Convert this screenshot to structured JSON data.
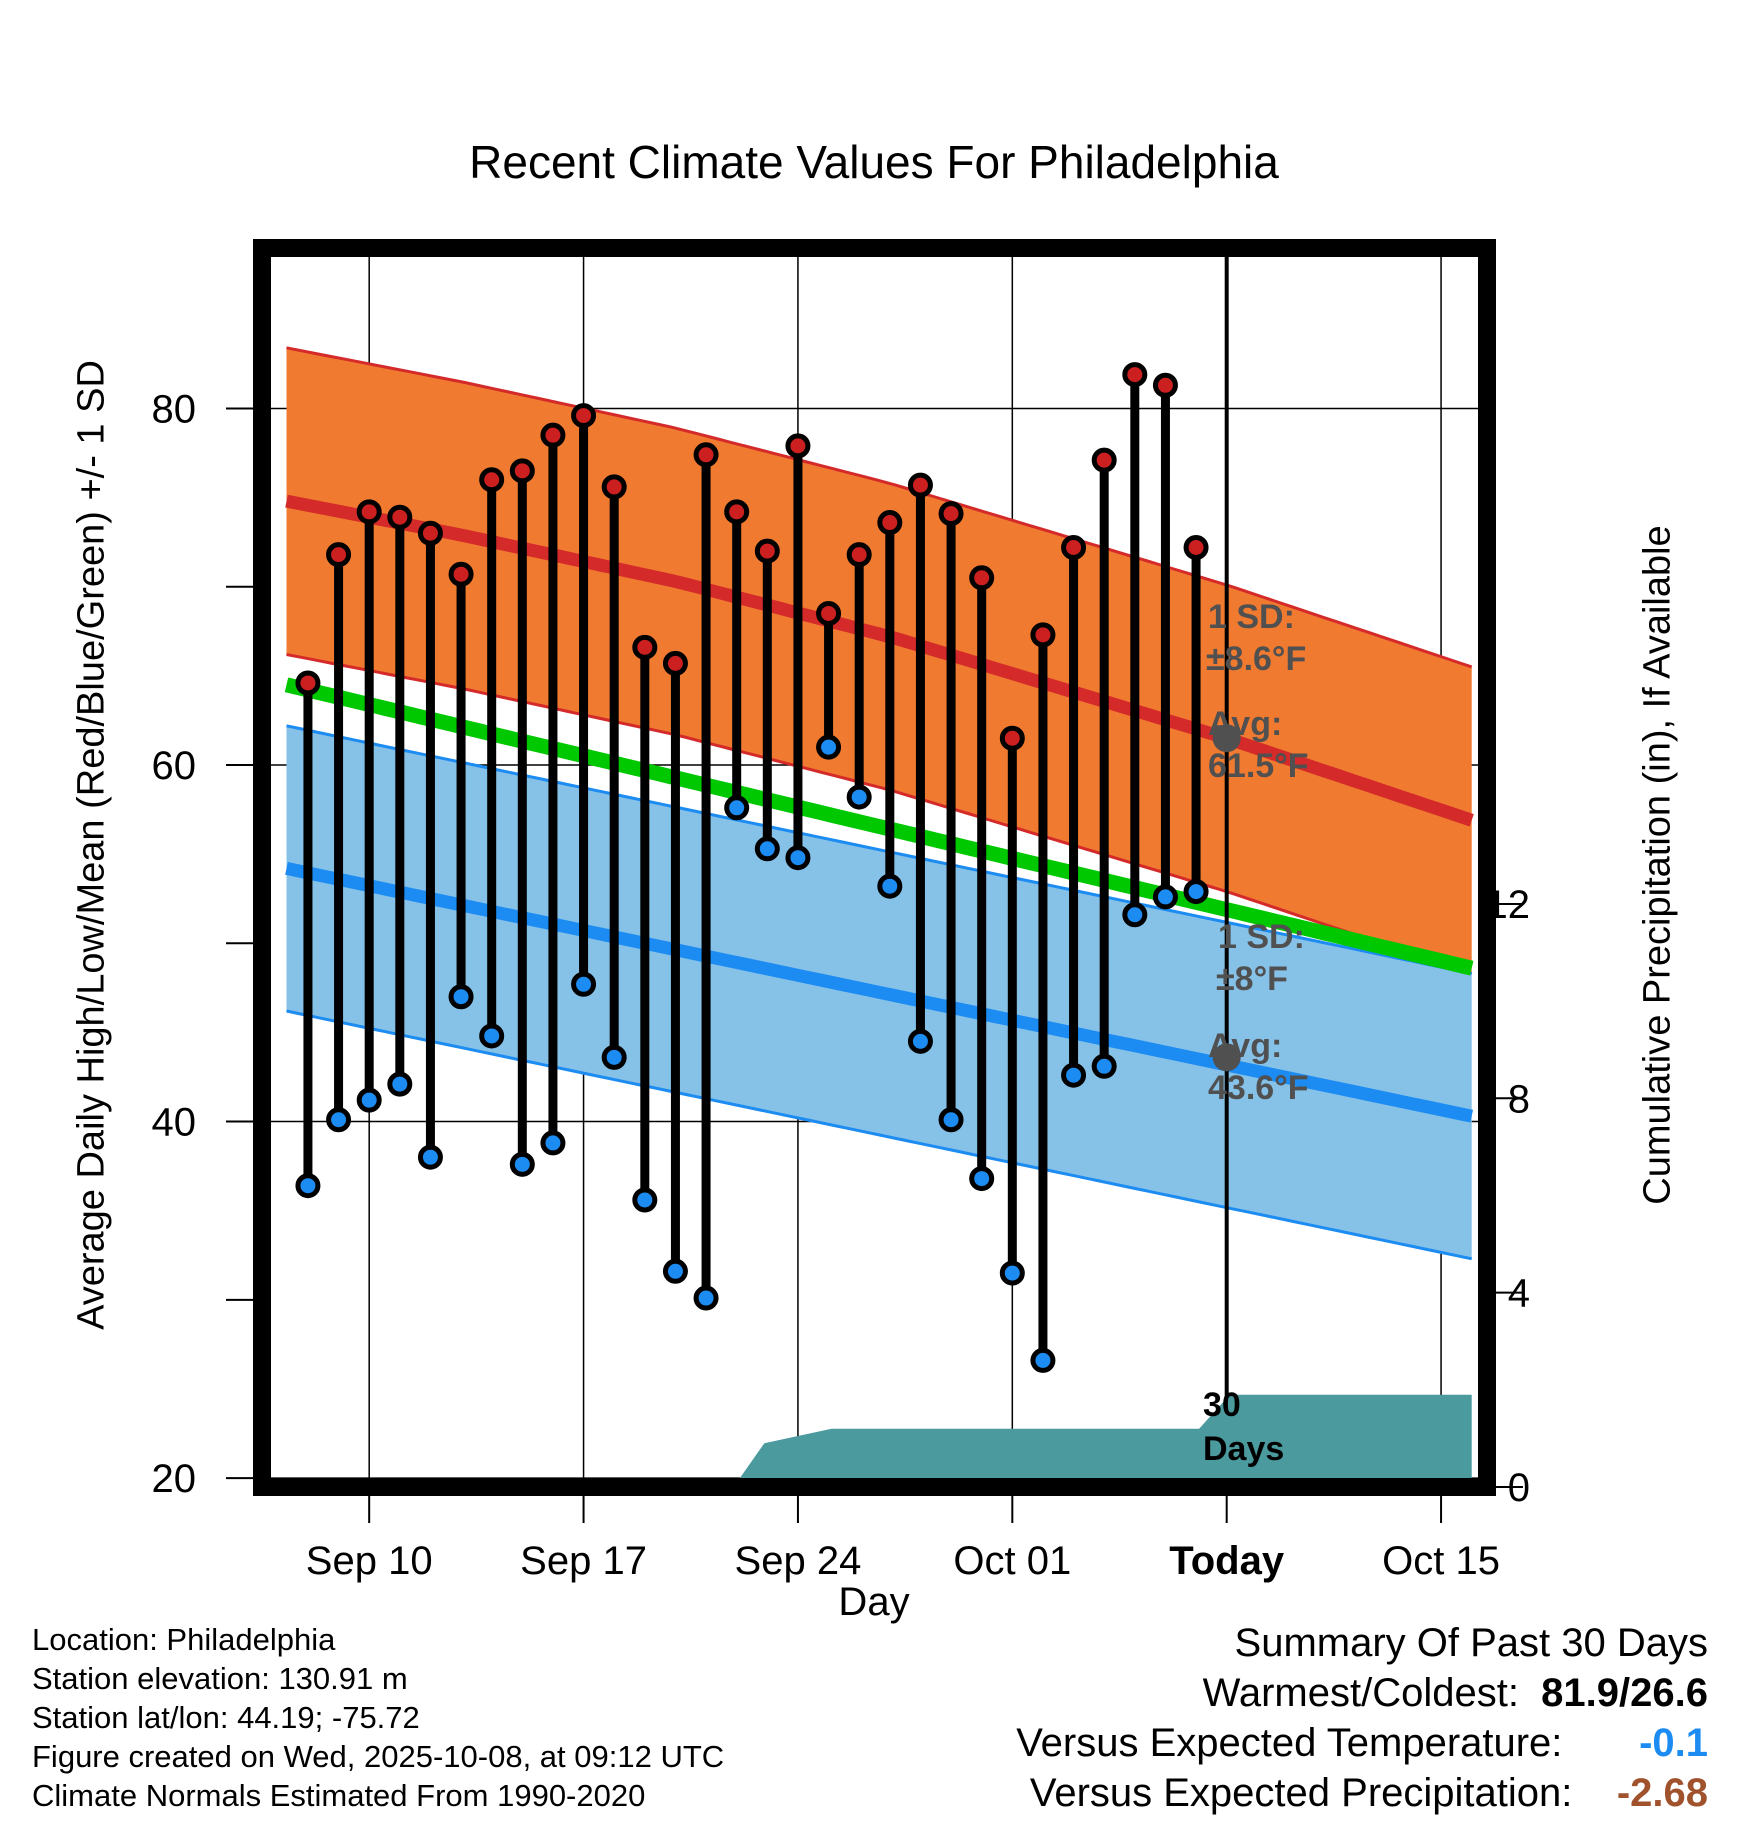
{
  "chart_data": {
    "type": "line",
    "title": "Recent Climate Values For Philadelphia",
    "xlabel": "Day",
    "ylabel_left": "Average Daily High/Low/Mean (Red/Blue/Green) +/- 1 SD",
    "ylabel_right": "Cumulative Precipitation (in), If Available",
    "xlim": [
      -3.5,
      36.5
    ],
    "ylim_left": [
      19.5,
      89
    ],
    "ylim_right": [
      0,
      25.5
    ],
    "x_ticks": [
      {
        "x": 0,
        "label": "Sep 10",
        "bold": false
      },
      {
        "x": 7,
        "label": "Sep 17",
        "bold": false
      },
      {
        "x": 14,
        "label": "Sep 24",
        "bold": false
      },
      {
        "x": 21,
        "label": "Oct 01",
        "bold": false
      },
      {
        "x": 28,
        "label": "Today",
        "bold": true
      },
      {
        "x": 35,
        "label": "Oct 15",
        "bold": false
      }
    ],
    "y_ticks_left": [
      {
        "value": 20,
        "label": "20"
      },
      {
        "value": 30,
        "label": ""
      },
      {
        "value": 40,
        "label": "40"
      },
      {
        "value": 50,
        "label": ""
      },
      {
        "value": 60,
        "label": "60"
      },
      {
        "value": 70,
        "label": ""
      },
      {
        "value": 80,
        "label": "80"
      }
    ],
    "y_ticks_right": [
      {
        "value": 0,
        "label": "0"
      },
      {
        "value": 4,
        "label": "4"
      },
      {
        "value": 8,
        "label": "8"
      },
      {
        "value": 12,
        "label": "12"
      }
    ],
    "today_x": 28,
    "normal_high": {
      "x": [
        -2.7,
        3,
        10,
        17,
        28,
        36
      ],
      "mean": [
        74.8,
        72.9,
        70.3,
        67.2,
        61.5,
        56.9
      ],
      "sd": 8.6
    },
    "normal_low": {
      "x": [
        -2.7,
        36
      ],
      "mean": [
        54.2,
        40.3
      ],
      "sd": 8.0
    },
    "normal_mean": {
      "x": [
        -2.7,
        36
      ],
      "values": [
        64.5,
        48.6
      ]
    },
    "highs": [
      64.6,
      71.8,
      74.2,
      73.9,
      73.0,
      70.7,
      76.0,
      76.5,
      78.5,
      79.6,
      75.6,
      66.6,
      65.7,
      77.4,
      74.2,
      72.0,
      77.9,
      68.5,
      71.8,
      73.6,
      75.7,
      74.1,
      70.5,
      61.5,
      67.3,
      72.2,
      77.1,
      81.9,
      81.3,
      72.2
    ],
    "lows": [
      36.4,
      40.1,
      41.2,
      42.1,
      38.0,
      47.0,
      44.8,
      37.6,
      38.8,
      47.7,
      43.6,
      35.6,
      31.6,
      30.1,
      57.6,
      55.3,
      54.8,
      61.0,
      58.2,
      53.2,
      44.5,
      40.1,
      36.8,
      31.5,
      26.6,
      42.6,
      43.1,
      51.6,
      52.6,
      52.9
    ],
    "precip": {
      "x": [
        -2.7,
        11.9,
        12.9,
        15.1,
        27.1,
        28.1,
        36
      ],
      "values": [
        0,
        0,
        0.9,
        1.2,
        1.2,
        1.9,
        1.9
      ]
    },
    "annotations": {
      "high_sd_label": "1 SD:",
      "high_sd_value": "±8.6°F",
      "high_avg_label": "Avg:",
      "high_avg_value": "61.5°F",
      "high_avg": 61.5,
      "low_sd_label": "1 SD:",
      "low_sd_value": "±8°F",
      "low_avg_label": "Avg:",
      "low_avg_value": "43.6°F",
      "low_avg": 43.6,
      "days_line1": "30",
      "days_line2": "Days"
    },
    "colors": {
      "high_band": "#f07a30",
      "high_line": "#d42a2a",
      "low_band": "#86c1e8",
      "low_line": "#1c8cf2",
      "mean_line": "#00c800",
      "precip": "#4a9a9e",
      "high_marker": "#cc2020",
      "low_marker": "#1c8cf2",
      "annotation": "#505050"
    }
  },
  "info": {
    "location": "Location: Philadelphia",
    "elevation": "Station elevation: 130.91 m",
    "latlon": "Station lat/lon: 44.19; -75.72",
    "created": "Figure created on Wed, 2025-10-08, at 09:12 UTC",
    "normals": "Climate Normals Estimated From 1990-2020"
  },
  "summary": {
    "heading": "Summary Of Past 30 Days",
    "warm_cold_label": "Warmest/Coldest:",
    "warm_cold_value": "81.9/26.6",
    "temp_label": "Versus Expected Temperature:",
    "temp_value": "-0.1",
    "temp_color": "#1c8cf2",
    "precip_label": "Versus Expected Precipitation:",
    "precip_value": "-2.68",
    "precip_color": "#a0522d"
  }
}
